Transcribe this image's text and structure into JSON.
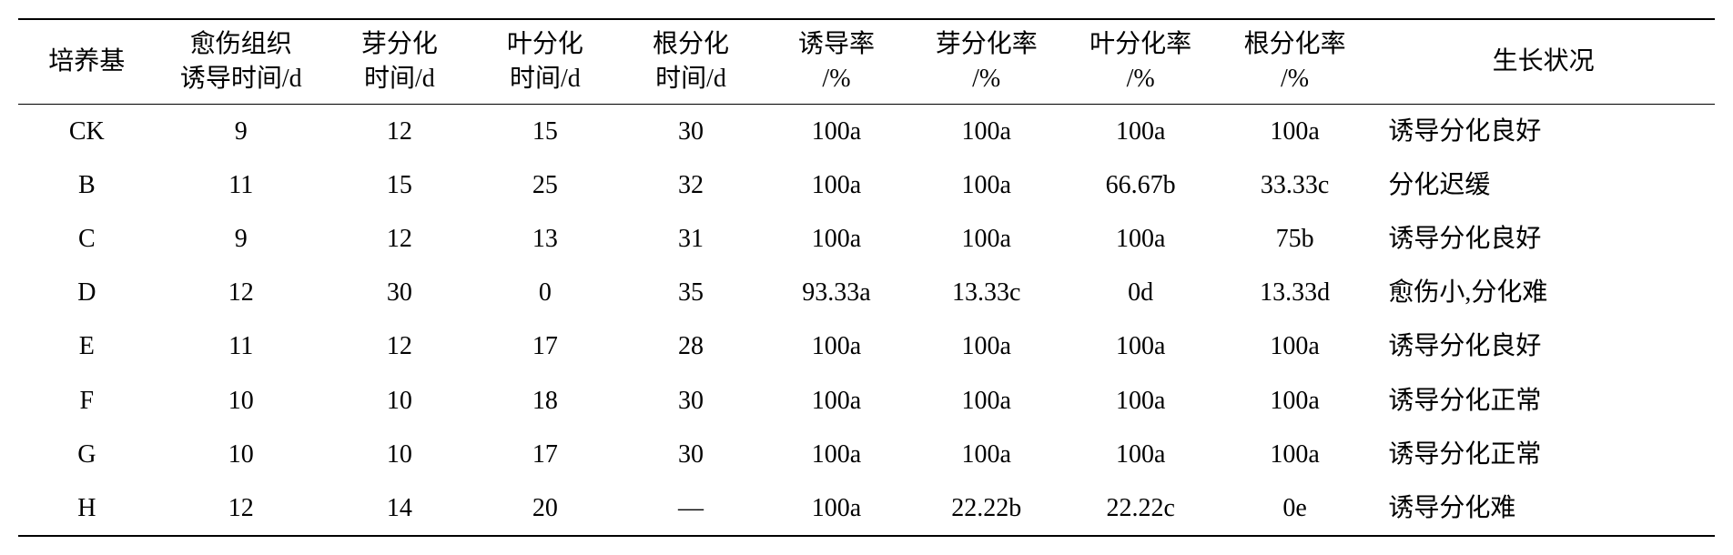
{
  "table": {
    "type": "table",
    "background_color": "#ffffff",
    "text_color": "#000000",
    "border_color": "#000000",
    "font_size_pt": 21,
    "font_family": "SimSun / Times New Roman",
    "border_top_width": 2,
    "border_header_width": 1.5,
    "border_bottom_width": 2,
    "columns": [
      {
        "key": "medium",
        "header": "培养基",
        "width_pct": 8,
        "align": "center"
      },
      {
        "key": "callus_time",
        "header": "愈伤组织\n诱导时间/d",
        "width_pct": 10,
        "align": "center"
      },
      {
        "key": "shoot_time",
        "header": "芽分化\n时间/d",
        "width_pct": 8.5,
        "align": "center"
      },
      {
        "key": "leaf_time",
        "header": "叶分化\n时间/d",
        "width_pct": 8.5,
        "align": "center"
      },
      {
        "key": "root_time",
        "header": "根分化\n时间/d",
        "width_pct": 8.5,
        "align": "center"
      },
      {
        "key": "induction_rate",
        "header": "诱导率\n/%",
        "width_pct": 8.5,
        "align": "center"
      },
      {
        "key": "shoot_rate",
        "header": "芽分化率\n/%",
        "width_pct": 9,
        "align": "center"
      },
      {
        "key": "leaf_rate",
        "header": "叶分化率\n/%",
        "width_pct": 9,
        "align": "center"
      },
      {
        "key": "root_rate",
        "header": "根分化率\n/%",
        "width_pct": 9,
        "align": "center"
      },
      {
        "key": "growth",
        "header": "生长状况",
        "width_pct": 20,
        "align": "left"
      }
    ],
    "rows": [
      [
        "CK",
        "9",
        "12",
        "15",
        "30",
        "100a",
        "100a",
        "100a",
        "100a",
        "诱导分化良好"
      ],
      [
        "B",
        "11",
        "15",
        "25",
        "32",
        "100a",
        "100a",
        "66.67b",
        "33.33c",
        "分化迟缓"
      ],
      [
        "C",
        "9",
        "12",
        "13",
        "31",
        "100a",
        "100a",
        "100a",
        "75b",
        "诱导分化良好"
      ],
      [
        "D",
        "12",
        "30",
        "0",
        "35",
        "93.33a",
        "13.33c",
        "0d",
        "13.33d",
        "愈伤小,分化难"
      ],
      [
        "E",
        "11",
        "12",
        "17",
        "28",
        "100a",
        "100a",
        "100a",
        "100a",
        "诱导分化良好"
      ],
      [
        "F",
        "10",
        "10",
        "18",
        "30",
        "100a",
        "100a",
        "100a",
        "100a",
        "诱导分化正常"
      ],
      [
        "G",
        "10",
        "10",
        "17",
        "30",
        "100a",
        "100a",
        "100a",
        "100a",
        "诱导分化正常"
      ],
      [
        "H",
        "12",
        "14",
        "20",
        "—",
        "100a",
        "22.22b",
        "22.22c",
        "0e",
        "诱导分化难"
      ]
    ]
  }
}
